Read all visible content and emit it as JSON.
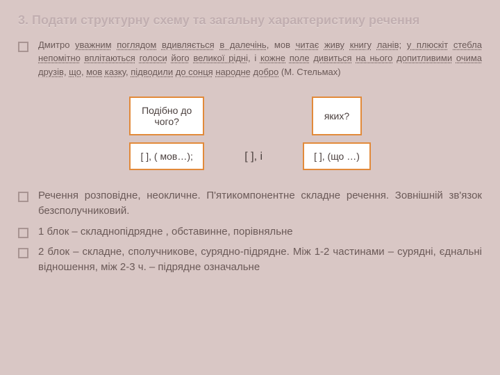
{
  "title": "3. Подати структурну схему та загальну характеристику речення",
  "sentence_html": "Дмитро <span class='u'>уважним</span> <span class='u'>поглядом</span> <span class='u'>вдивляється</span> <span class='u'>в далечінь</span>, мов <span class='u'>читає</span> <span class='u'>живу</span> <span class='u'>книгу</span> <span class='u'>ланів</span>; <span class='u'>у плюскіт</span> <span class='u'>стебла</span> <span class='u'>непомітно</span> <span class='u'>вплітаються</span> <span class='u'>голоси</span> <span class='u'>його</span> <span class='u'>великої рідні</span>, і <span class='u'>кожне</span> <span class='u'>поле</span> <span class='u'>дивиться</span> <span class='u'>на нього</span> <span class='u'>допитливими</span> <span class='u'>очима</span> <span class='u'>друзів</span>, <span class='u'>що</span>, <span class='u'>мов</span> <span class='u'>казку</span>, <span class='u'>підводили</span> <span class='u'>до сонця</span> <span class='u'>народне</span> <span class='u'>добро</span> (М. Стельмах)",
  "diagram": {
    "q1": "Подібно до\nчого?",
    "f1": "[   ], ( мов…);",
    "mid": "[   ], і",
    "q2": "яких?",
    "f2": "[  ], (що …)",
    "box_border": "#e28a3a",
    "box_bg": "#ffffff",
    "arrow_color": "#e28a3a"
  },
  "b1": "Речення розповідне, неокличне.  П'ятикомпонентне складне речення. Зовнішній зв'язок безсполучниковий.",
  "b2": "1 блок – складнопідрядне , обставинне, порівняльне",
  "b3": "2 блок – складне, сполучникове, сурядно-підрядне. Між 1-2 частинами – сурядні, єднальні відношення, між 2-3 ч. – підрядне означальне"
}
